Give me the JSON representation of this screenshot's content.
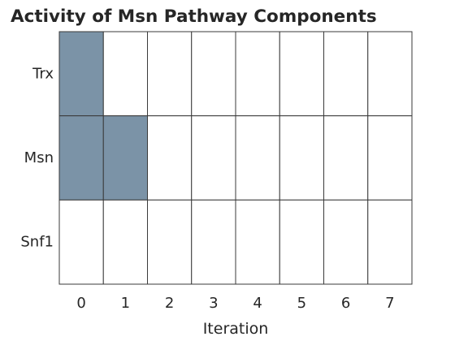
{
  "chart_data": {
    "type": "heatmap",
    "title": "Activity of Msn Pathway Components",
    "xlabel": "Iteration",
    "ylabel": "",
    "x": [
      "0",
      "1",
      "2",
      "3",
      "4",
      "5",
      "6",
      "7"
    ],
    "rows": [
      "Trx",
      "Msn",
      "Snf1"
    ],
    "values": [
      [
        1,
        0,
        0,
        0,
        0,
        0,
        0,
        0
      ],
      [
        1,
        1,
        0,
        0,
        0,
        0,
        0,
        0
      ],
      [
        0,
        0,
        0,
        0,
        0,
        0,
        0,
        0
      ]
    ],
    "colors": {
      "active": "#7b93a7",
      "inactive": "#ffffff",
      "grid": "#3a3a3a"
    },
    "grid": true,
    "legend": "none"
  }
}
